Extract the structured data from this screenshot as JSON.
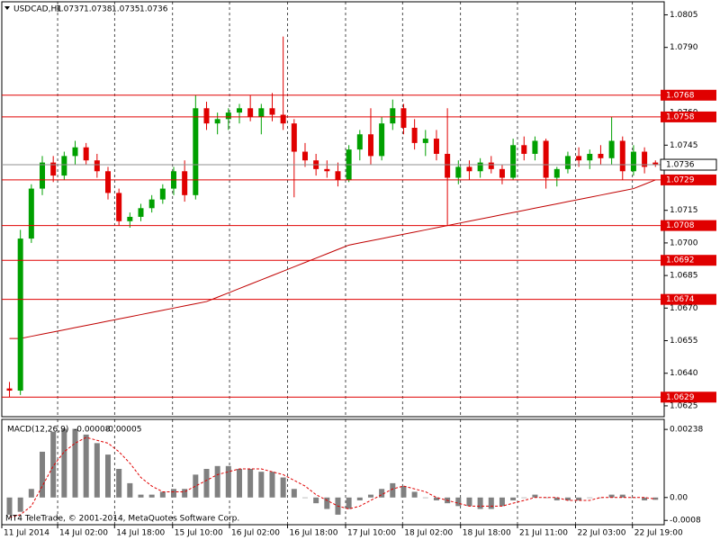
{
  "chart_data": [
    {
      "type": "candlestick",
      "symbol": "USDCAD,H1",
      "open": [
        1.0633,
        1.0632,
        1.0702,
        1.0725,
        1.0737,
        1.0731,
        1.074,
        1.0744,
        1.0738,
        1.0733,
        1.0723,
        1.071,
        1.0712,
        1.0716,
        1.072,
        1.0725,
        1.0733,
        1.0722,
        1.0762,
        1.0755,
        1.0757,
        1.076,
        1.0762,
        1.0758,
        1.0762,
        1.0759,
        1.0755,
        1.0742,
        1.0738,
        1.0734,
        1.0733,
        1.0729,
        1.0743,
        1.075,
        1.074,
        1.0755,
        1.0762,
        1.0753,
        1.0746,
        1.0748,
        1.0741,
        1.073,
        1.0735,
        1.0733,
        1.0737,
        1.0734,
        1.073,
        1.0745,
        1.0741,
        1.0747,
        1.073,
        1.0734,
        1.074,
        1.0738,
        1.0741,
        1.0739,
        1.0747,
        1.0733,
        1.0742,
        1.0737
      ],
      "high": [
        1.0636,
        1.0706,
        1.0727,
        1.074,
        1.074,
        1.0742,
        1.0747,
        1.0746,
        1.0741,
        1.0735,
        1.0725,
        1.0714,
        1.0718,
        1.0722,
        1.0727,
        1.0735,
        1.0738,
        1.0768,
        1.0765,
        1.076,
        1.0762,
        1.0764,
        1.0768,
        1.0764,
        1.0769,
        1.0795,
        1.0757,
        1.0746,
        1.0741,
        1.0738,
        1.0737,
        1.0745,
        1.0752,
        1.0762,
        1.0758,
        1.0766,
        1.0764,
        1.0757,
        1.0752,
        1.0752,
        1.0762,
        1.0738,
        1.0738,
        1.0739,
        1.074,
        1.0736,
        1.0748,
        1.0749,
        1.0749,
        1.0748,
        1.0735,
        1.0742,
        1.0744,
        1.0743,
        1.0745,
        1.0758,
        1.0749,
        1.0745,
        1.0744,
        1.0738
      ],
      "low": [
        1.0629,
        1.063,
        1.07,
        1.0722,
        1.0728,
        1.0729,
        1.0736,
        1.0736,
        1.073,
        1.072,
        1.0708,
        1.0707,
        1.071,
        1.0714,
        1.0718,
        1.0722,
        1.0719,
        1.072,
        1.0752,
        1.075,
        1.0752,
        1.0755,
        1.0756,
        1.075,
        1.0756,
        1.0752,
        1.0721,
        1.0735,
        1.0731,
        1.073,
        1.0726,
        1.0728,
        1.0738,
        1.0736,
        1.0738,
        1.0752,
        1.075,
        1.0743,
        1.074,
        1.0738,
        1.0708,
        1.0727,
        1.0729,
        1.073,
        1.0732,
        1.0727,
        1.0729,
        1.0738,
        1.0738,
        1.0725,
        1.0726,
        1.0732,
        1.0735,
        1.0734,
        1.0736,
        1.0736,
        1.0729,
        1.0731,
        1.0732,
        1.0735
      ],
      "close": [
        1.0632,
        1.0702,
        1.0725,
        1.0737,
        1.0731,
        1.074,
        1.0744,
        1.0738,
        1.0733,
        1.0723,
        1.071,
        1.0712,
        1.0716,
        1.072,
        1.0725,
        1.0733,
        1.0722,
        1.0762,
        1.0755,
        1.0757,
        1.076,
        1.0762,
        1.0758,
        1.0762,
        1.0759,
        1.0755,
        1.0742,
        1.0738,
        1.0734,
        1.0733,
        1.0729,
        1.0743,
        1.075,
        1.074,
        1.0755,
        1.0762,
        1.0753,
        1.0746,
        1.0748,
        1.0741,
        1.073,
        1.0735,
        1.0733,
        1.0737,
        1.0734,
        1.073,
        1.0745,
        1.0741,
        1.0747,
        1.073,
        1.0734,
        1.074,
        1.0738,
        1.0741,
        1.0739,
        1.0747,
        1.0733,
        1.0742,
        1.0735,
        1.0736
      ],
      "colors": {
        "up": "#00a000",
        "down": "#e00000"
      },
      "ma": {
        "color": "#c00000",
        "values": [
          1.0656,
          1.0656,
          1.0657,
          1.0658,
          1.0659,
          1.066,
          1.0661,
          1.0662,
          1.0663,
          1.0664,
          1.0665,
          1.0666,
          1.0667,
          1.0668,
          1.0669,
          1.067,
          1.0671,
          1.0672,
          1.0673,
          1.0675,
          1.0677,
          1.0679,
          1.0681,
          1.0683,
          1.0685,
          1.0687,
          1.0689,
          1.0691,
          1.0693,
          1.0695,
          1.0697,
          1.0699,
          1.07,
          1.0701,
          1.0702,
          1.0703,
          1.0704,
          1.0705,
          1.0706,
          1.0707,
          1.0708,
          1.0709,
          1.071,
          1.0711,
          1.0712,
          1.0713,
          1.0714,
          1.0715,
          1.0716,
          1.0717,
          1.0718,
          1.0719,
          1.072,
          1.0721,
          1.0722,
          1.0723,
          1.0724,
          1.0725,
          1.0727,
          1.0729
        ]
      },
      "levels": {
        "color": "#e00000",
        "values": [
          1.0768,
          1.0758,
          1.0729,
          1.0708,
          1.0692,
          1.0674,
          1.0629
        ]
      },
      "price_line_color": "#909090",
      "ylim": [
        1.062,
        1.0811
      ],
      "yticks": [
        1.0805,
        {
          "value": 1.079,
          "label": "1.0790"
        },
        {
          "value": 1.076,
          "label": "1.0760"
        },
        1.0745,
        1.0715,
        {
          "value": 1.07,
          "label": "1.0700"
        },
        1.0685,
        {
          "value": 1.067,
          "label": "1.0670"
        },
        1.0655,
        {
          "value": 1.064,
          "label": "1.0640"
        },
        1.0625
      ],
      "xlim": [
        -0.7,
        59.8
      ],
      "xticks": [
        {
          "value": -0.7,
          "label": "11 Jul 2014"
        },
        {
          "value": 4.4,
          "label": "14 Jul 02:00"
        },
        {
          "value": 9.6,
          "label": "14 Jul 18:00"
        },
        {
          "value": 14.9,
          "label": "15 Jul 10:00"
        },
        {
          "value": 20.1,
          "label": "16 Jul 02:00"
        },
        {
          "value": 25.4,
          "label": "16 Jul 18:00"
        },
        {
          "value": 30.7,
          "label": "17 Jul 10:00"
        },
        {
          "value": 35.9,
          "label": "18 Jul 02:00"
        },
        {
          "value": 41.2,
          "label": "18 Jul 18:00"
        },
        {
          "value": 46.4,
          "label": "21 Jul 11:00"
        },
        {
          "value": 51.7,
          "label": "22 Jul 03:00"
        },
        {
          "value": 56.9,
          "label": "22 Jul 19:00"
        }
      ],
      "grid": true
    },
    {
      "type": "macd",
      "title": "MACD(12,26,9)",
      "histogram": {
        "color": "#808080",
        "values": [
          -0.0006,
          -0.0005,
          0.0003,
          0.0016,
          0.0023,
          0.0024,
          0.0024,
          0.0022,
          0.0019,
          0.0015,
          0.001,
          0.0005,
          0.0001,
          0.0001,
          0.0002,
          0.0003,
          0.0003,
          0.0008,
          0.001,
          0.0011,
          0.0011,
          0.001,
          0.001,
          0.0009,
          0.0009,
          0.0007,
          0.0003,
          0,
          -0.0002,
          -0.0004,
          -0.0006,
          -0.0004,
          -0.0001,
          0.0001,
          0.0003,
          0.0005,
          0.0004,
          0.0002,
          0,
          -0.0001,
          -0.0002,
          -0.0003,
          -0.0003,
          -0.0004,
          -0.0004,
          -0.0003,
          -0.0001,
          0,
          0.0001,
          0,
          -0.0001,
          -0.0001,
          -0.0001,
          0,
          0,
          0.0001,
          0.0001,
          0,
          -0.0001,
          -8e-05
        ]
      },
      "signal": {
        "color": "#e00000",
        "values": [
          -0.0007,
          -0.0006,
          -0.0003,
          0.0004,
          0.0011,
          0.0016,
          0.0019,
          0.0021,
          0.002,
          0.0019,
          0.0016,
          0.0012,
          0.0007,
          0.0004,
          0.0002,
          0.0002,
          0.0002,
          0.0004,
          0.0006,
          0.0008,
          0.0009,
          0.001,
          0.001,
          0.001,
          0.0009,
          0.0008,
          0.0006,
          0.0004,
          0.0001,
          -0.0001,
          -0.0003,
          -0.0004,
          -0.0003,
          -0.0001,
          0.0001,
          0.0003,
          0.0004,
          0.0003,
          0.0002,
          0,
          -0.0001,
          -0.0002,
          -0.0003,
          -0.0003,
          -0.0003,
          -0.0003,
          -0.0002,
          -0.0001,
          0,
          0,
          0,
          -0.0001,
          -0.0001,
          -0.0001,
          0,
          0,
          0,
          0,
          0,
          -5e-05
        ]
      },
      "ylim": [
        -0.00095,
        0.00273
      ],
      "yticks": [
        0.00238,
        {
          "value": 0,
          "label": "0.00"
        },
        -0.0008
      ]
    }
  ],
  "copyright": "MT4 TeleTrade, © 2001-2014, MetaQuotes Software Corp."
}
